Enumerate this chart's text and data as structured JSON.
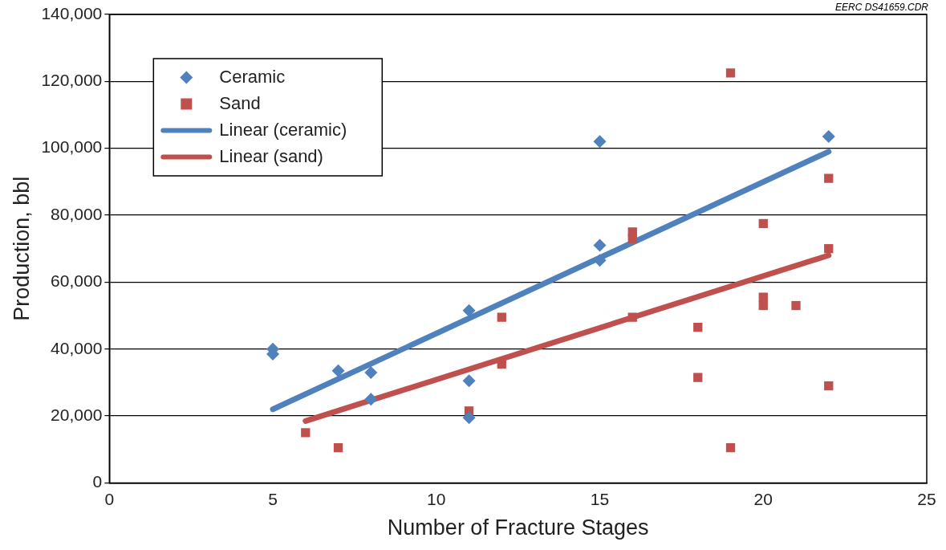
{
  "chart_data": {
    "type": "scatter",
    "xlabel": "Number of Fracture Stages",
    "ylabel": "Production, bbl",
    "annotations": [
      "EERC DS41659.CDR"
    ],
    "xlim": [
      0,
      25
    ],
    "xticks": [
      0,
      5,
      10,
      15,
      20,
      25
    ],
    "ylim": [
      0,
      140000
    ],
    "yticks": [
      0,
      {
        "value": 20000,
        "label": "20,000"
      },
      {
        "value": 40000,
        "label": "40,000"
      },
      {
        "value": 60000,
        "label": "60,000"
      },
      {
        "value": 80000,
        "label": "80,000"
      },
      {
        "value": 100000,
        "label": "100,000"
      },
      {
        "value": 120000,
        "label": "120,000"
      },
      {
        "value": 140000,
        "label": "140,000"
      }
    ],
    "grid": "y",
    "legend": "top left",
    "series": [
      {
        "name": "Ceramic",
        "marker": "diamond",
        "color": "#4f81bd",
        "x": [
          5,
          5,
          7,
          8,
          8,
          11,
          11,
          11,
          15,
          15,
          15,
          22
        ],
        "values": [
          40000,
          38500,
          33500,
          33000,
          25000,
          51500,
          30500,
          19500,
          102000,
          71000,
          66500,
          103500
        ]
      },
      {
        "name": "Sand",
        "marker": "square",
        "color": "#c0504d",
        "x": [
          6,
          7,
          11,
          12,
          12,
          16,
          16,
          16,
          18,
          18,
          19,
          19,
          20,
          20,
          20,
          21,
          22,
          22,
          22
        ],
        "values": [
          15000,
          10500,
          21500,
          49500,
          35500,
          75000,
          73000,
          49500,
          46500,
          31500,
          122500,
          10500,
          77500,
          55500,
          53000,
          53000,
          91000,
          70000,
          29000
        ]
      },
      {
        "name": "Linear (ceramic)",
        "type": "line",
        "marker": "none",
        "line_style": "solid",
        "color": "#4f81bd",
        "x": [
          5,
          22
        ],
        "values": [
          22000,
          99000
        ]
      },
      {
        "name": "Linear (sand)",
        "type": "line",
        "marker": "none",
        "line_style": "solid",
        "color": "#c0504d",
        "x": [
          6,
          22
        ],
        "values": [
          18500,
          68000
        ]
      }
    ]
  }
}
